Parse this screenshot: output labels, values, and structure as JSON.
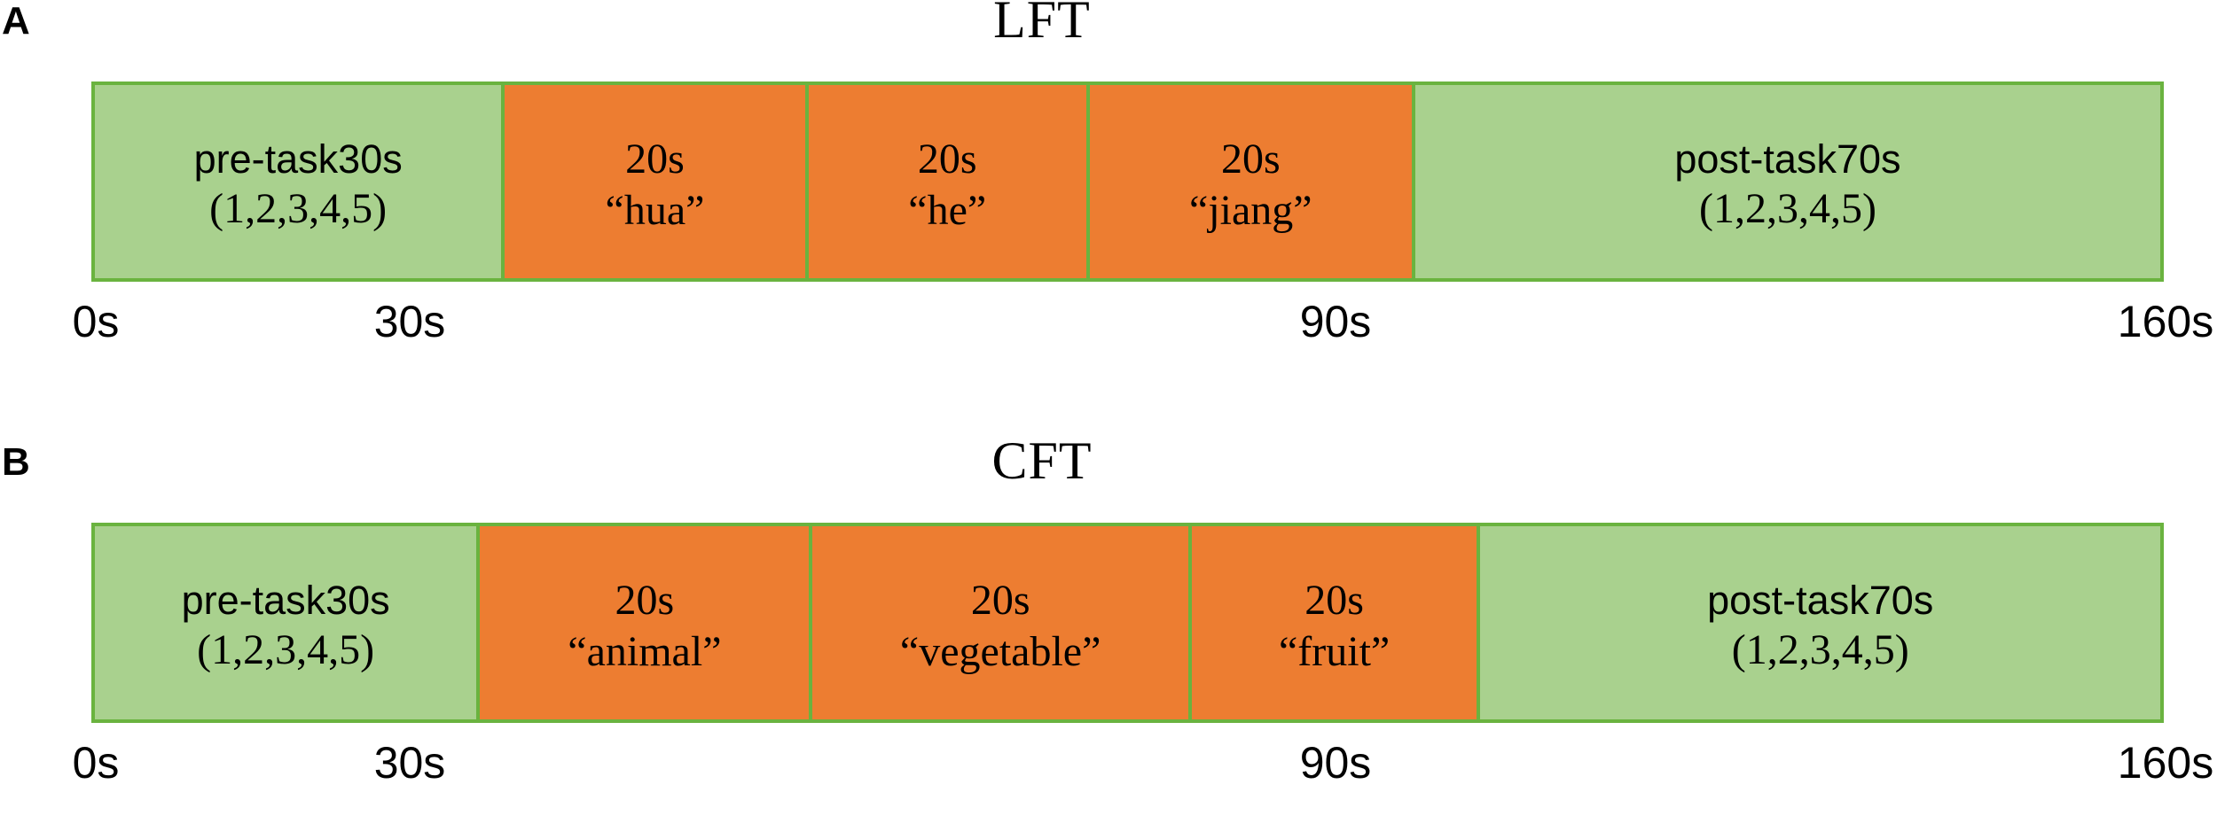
{
  "figure": {
    "panels": [
      {
        "label": "A",
        "title": "LFT",
        "segments": [
          {
            "type": "rest",
            "line1": "pre-task30s",
            "line2": "(1,2,3,4,5)"
          },
          {
            "type": "task",
            "line1": "20s",
            "line2": "“hua”"
          },
          {
            "type": "task",
            "line1": "20s",
            "line2": "“he”"
          },
          {
            "type": "task",
            "line1": "20s",
            "line2": "“jiang”"
          },
          {
            "type": "rest",
            "line1": "post-task70s",
            "line2": "(1,2,3,4,5)"
          }
        ],
        "ticks": [
          "0s",
          "30s",
          "90s",
          "160s"
        ]
      },
      {
        "label": "B",
        "title": "CFT",
        "segments": [
          {
            "type": "rest",
            "line1": "pre-task30s",
            "line2": "(1,2,3,4,5)"
          },
          {
            "type": "task",
            "line1": "20s",
            "line2": "“animal”"
          },
          {
            "type": "task",
            "line1": "20s",
            "line2": "“vegetable”"
          },
          {
            "type": "task",
            "line1": "20s",
            "line2": "“fruit”"
          },
          {
            "type": "rest",
            "line1": "post-task70s",
            "line2": "(1,2,3,4,5)"
          }
        ],
        "ticks": [
          "0s",
          "30s",
          "90s",
          "160s"
        ]
      }
    ],
    "colors": {
      "rest_fill": "#a9d18e",
      "task_fill": "#ed7d31",
      "border_green": "#6ab33f",
      "text": "#000000"
    }
  }
}
